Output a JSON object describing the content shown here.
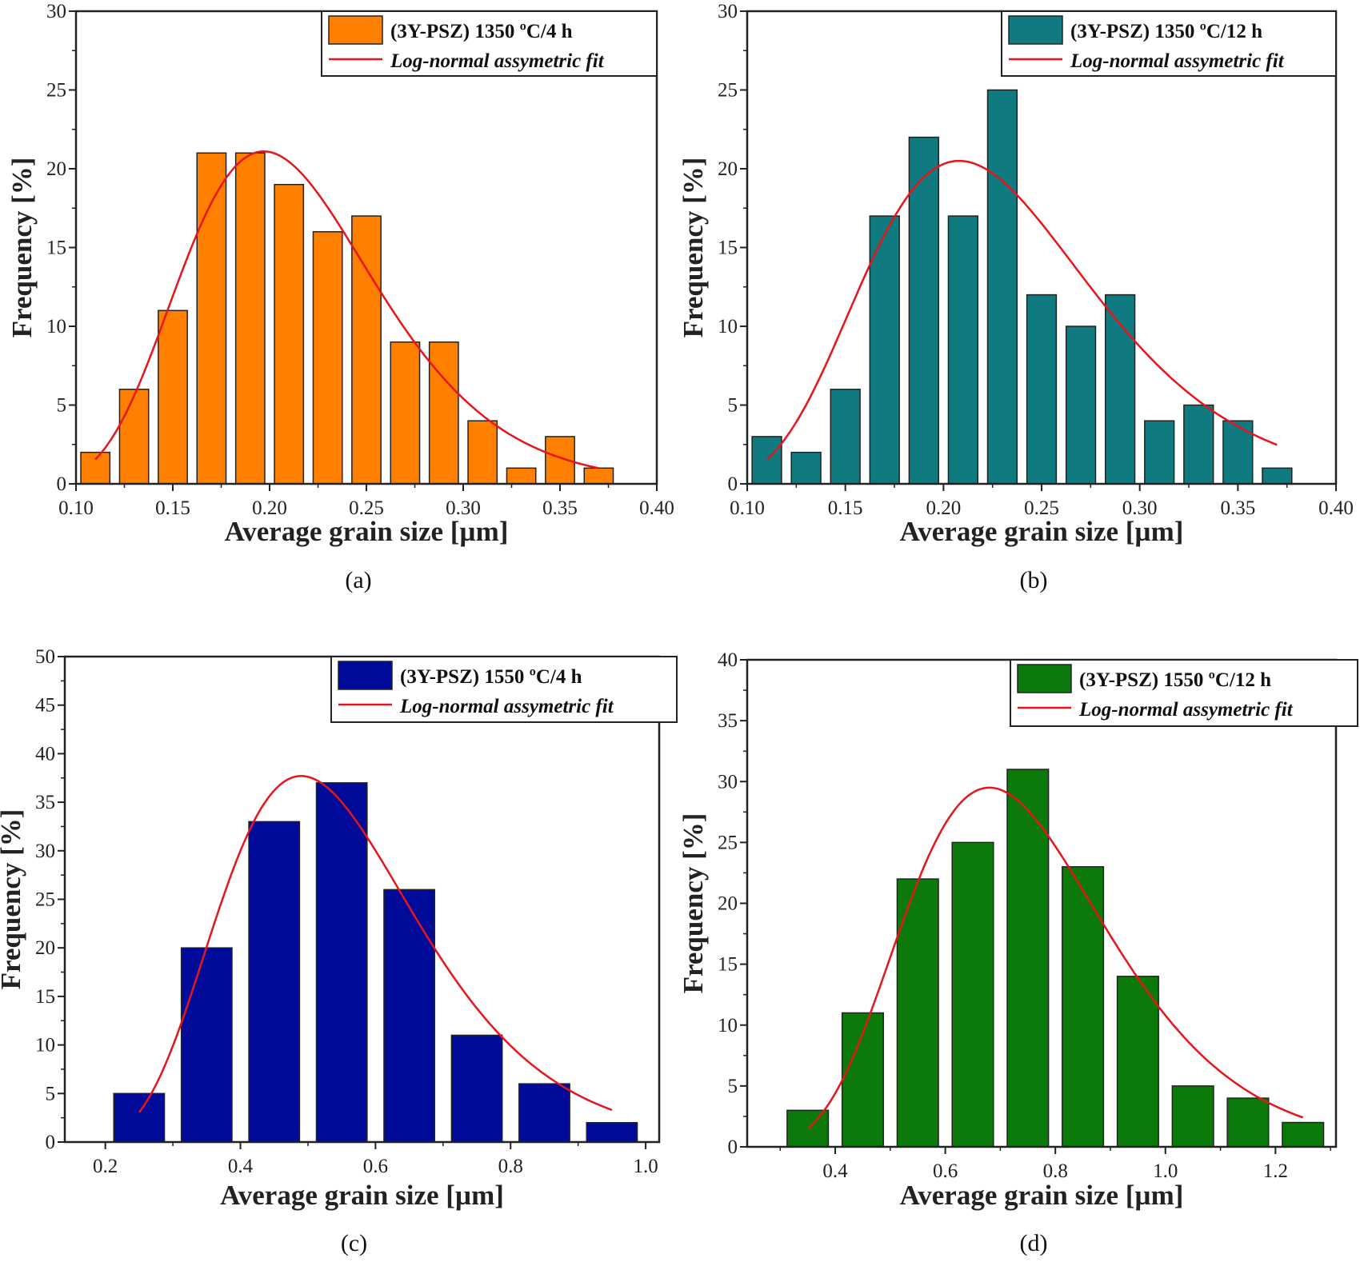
{
  "chart_data": [
    {
      "panel": "(a)",
      "type": "bar",
      "xlabel": "Average grain size [µm]",
      "ylabel": "Frequency [%]",
      "xlim": [
        0.1,
        0.4
      ],
      "ylim": [
        0,
        30
      ],
      "xticks": [
        "0.10",
        "0.15",
        "0.20",
        "0.25",
        "0.30",
        "0.35",
        "0.40"
      ],
      "yticks": [
        "0",
        "5",
        "10",
        "15",
        "20",
        "25",
        "30"
      ],
      "legend": "top-right",
      "grid": false,
      "bar_color": "#ff8000",
      "fit_color": "#e8141c",
      "legend_entries": [
        "(3Y-PSZ) 1350 ºC/4 h",
        "Log-normal assymetric fit"
      ],
      "x": [
        0.11,
        0.13,
        0.15,
        0.17,
        0.19,
        0.21,
        0.23,
        0.25,
        0.27,
        0.29,
        0.31,
        0.33,
        0.35,
        0.37
      ],
      "values": [
        2,
        6,
        11,
        21,
        21,
        19,
        16,
        17,
        9,
        9,
        4,
        1,
        3,
        1
      ],
      "bar_width": 0.015,
      "fit": {
        "xc": 0.197,
        "A": 21.1,
        "w": 0.255,
        "x_range": [
          0.11,
          0.37
        ]
      }
    },
    {
      "panel": "(b)",
      "type": "bar",
      "xlabel": "Average grain size [µm]",
      "ylabel": "Frequency [%]",
      "xlim": [
        0.1,
        0.4
      ],
      "ylim": [
        0,
        30
      ],
      "xticks": [
        "0.10",
        "0.15",
        "0.20",
        "0.25",
        "0.30",
        "0.35",
        "0.40"
      ],
      "yticks": [
        "0",
        "5",
        "10",
        "15",
        "20",
        "25",
        "30"
      ],
      "legend": "top-right",
      "grid": false,
      "bar_color": "#0f7b80",
      "fit_color": "#e8141c",
      "legend_entries": [
        "(3Y-PSZ) 1350 ºC/12 h",
        "Log-normal assymetric fit"
      ],
      "x": [
        0.11,
        0.13,
        0.15,
        0.17,
        0.19,
        0.21,
        0.23,
        0.25,
        0.27,
        0.29,
        0.31,
        0.33,
        0.35,
        0.37
      ],
      "values": [
        3,
        2,
        6,
        17,
        22,
        17,
        25,
        12,
        10,
        12,
        4,
        5,
        4,
        1
      ],
      "bar_width": 0.015,
      "fit": {
        "xc": 0.208,
        "A": 20.5,
        "w": 0.28,
        "x_range": [
          0.11,
          0.37
        ]
      }
    },
    {
      "panel": "(c)",
      "type": "bar",
      "xlabel": "Average grain size [µm]",
      "ylabel": "Frequency [%]",
      "xlim": [
        0.14,
        1.02
      ],
      "ylim": [
        0,
        50
      ],
      "xticks": [
        "0.2",
        "0.4",
        "0.6",
        "0.8",
        "1.0"
      ],
      "yticks": [
        "0",
        "5",
        "10",
        "15",
        "20",
        "25",
        "30",
        "35",
        "40",
        "45",
        "50"
      ],
      "legend": "top-right",
      "grid": false,
      "bar_color": "#000c99",
      "fit_color": "#e8141c",
      "legend_entries": [
        "(3Y-PSZ) 1550 ºC/4 h",
        "Log-normal assymetric fit"
      ],
      "x": [
        0.25,
        0.35,
        0.45,
        0.55,
        0.65,
        0.75,
        0.85,
        0.95
      ],
      "values": [
        5,
        20,
        33,
        37,
        26,
        11,
        6,
        2
      ],
      "bar_width": 0.075,
      "fit": {
        "xc": 0.49,
        "A": 37.7,
        "w": 0.3,
        "x_range": [
          0.25,
          0.95
        ]
      }
    },
    {
      "panel": "(d)",
      "type": "bar",
      "xlabel": "Average grain size [µm]",
      "ylabel": "Frequency [%]",
      "xlim": [
        0.24,
        1.31
      ],
      "ylim": [
        0,
        40
      ],
      "xticks": [
        "0.4",
        "0.6",
        "0.8",
        "1.0",
        "1.2"
      ],
      "yticks": [
        "0",
        "5",
        "10",
        "15",
        "20",
        "25",
        "30",
        "35",
        "40"
      ],
      "legend": "top-right",
      "grid": false,
      "bar_color": "#0b7a0b",
      "fit_color": "#e8141c",
      "legend_entries": [
        "(3Y-PSZ) 1550 ºC/12 h",
        "Log-normal assymetric fit"
      ],
      "x": [
        0.35,
        0.45,
        0.55,
        0.65,
        0.75,
        0.85,
        0.95,
        1.05,
        1.15,
        1.25
      ],
      "values": [
        3,
        11,
        22,
        25,
        31,
        23,
        14,
        5,
        4,
        2
      ],
      "bar_width": 0.075,
      "fit": {
        "xc": 0.68,
        "A": 29.5,
        "w": 0.272,
        "x_range": [
          0.35,
          1.25
        ]
      }
    }
  ]
}
